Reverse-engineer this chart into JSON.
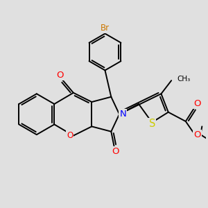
{
  "background_color": "#e0e0e0",
  "bond_color": "#000000",
  "bond_width": 1.4,
  "atom_colors": {
    "O": "#ff0000",
    "N": "#0000ff",
    "S": "#cccc00",
    "Br": "#cc7700",
    "C": "#000000"
  },
  "font_size": 8.5,
  "xlim": [
    -4.5,
    5.5
  ],
  "ylim": [
    -3.5,
    4.5
  ]
}
